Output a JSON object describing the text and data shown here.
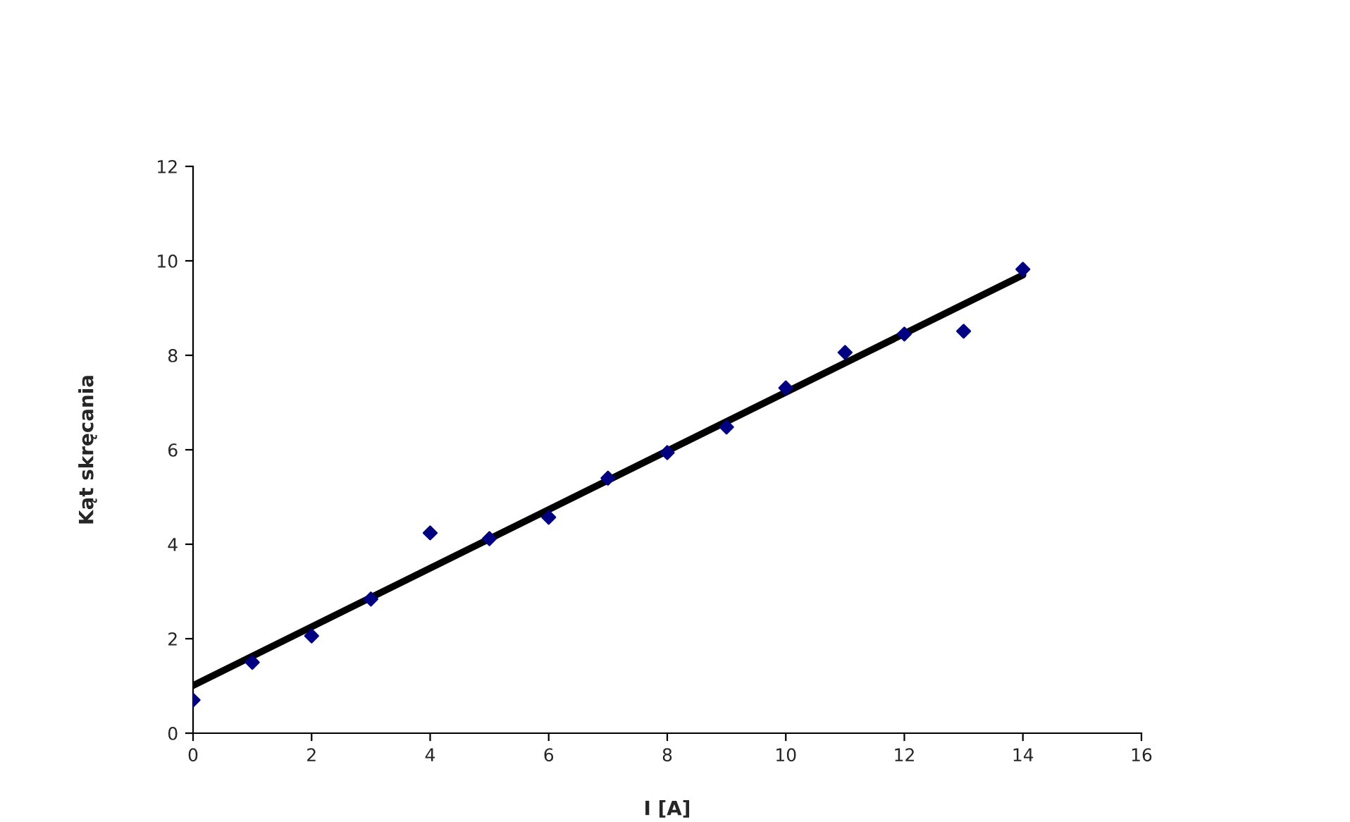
{
  "chart_data": {
    "type": "scatter",
    "xlabel": "I [A]",
    "ylabel": "Kąt skręcania",
    "x": [
      0,
      1,
      2,
      3,
      4,
      5,
      6,
      7,
      8,
      9,
      10,
      11,
      12,
      13,
      14
    ],
    "series": [
      {
        "color": "#000080",
        "marker": "diamond",
        "values": [
          0.7,
          1.5,
          2.06,
          2.84,
          4.24,
          4.12,
          4.57,
          5.4,
          5.94,
          6.48,
          7.31,
          8.06,
          8.45,
          8.51,
          9.82
        ]
      },
      {
        "type": "line",
        "color": "#000000",
        "marker": "none",
        "line_style": "solid",
        "x": [
          0,
          14
        ],
        "values": [
          1.01,
          9.7
        ]
      }
    ],
    "xlim": [
      0,
      16
    ],
    "xticks": [
      0,
      2,
      4,
      6,
      8,
      10,
      12,
      14,
      16
    ],
    "ylim": [
      0,
      12
    ],
    "yticks": [
      0,
      2,
      4,
      6,
      8,
      10,
      12
    ],
    "grid": false,
    "legend": false
  }
}
